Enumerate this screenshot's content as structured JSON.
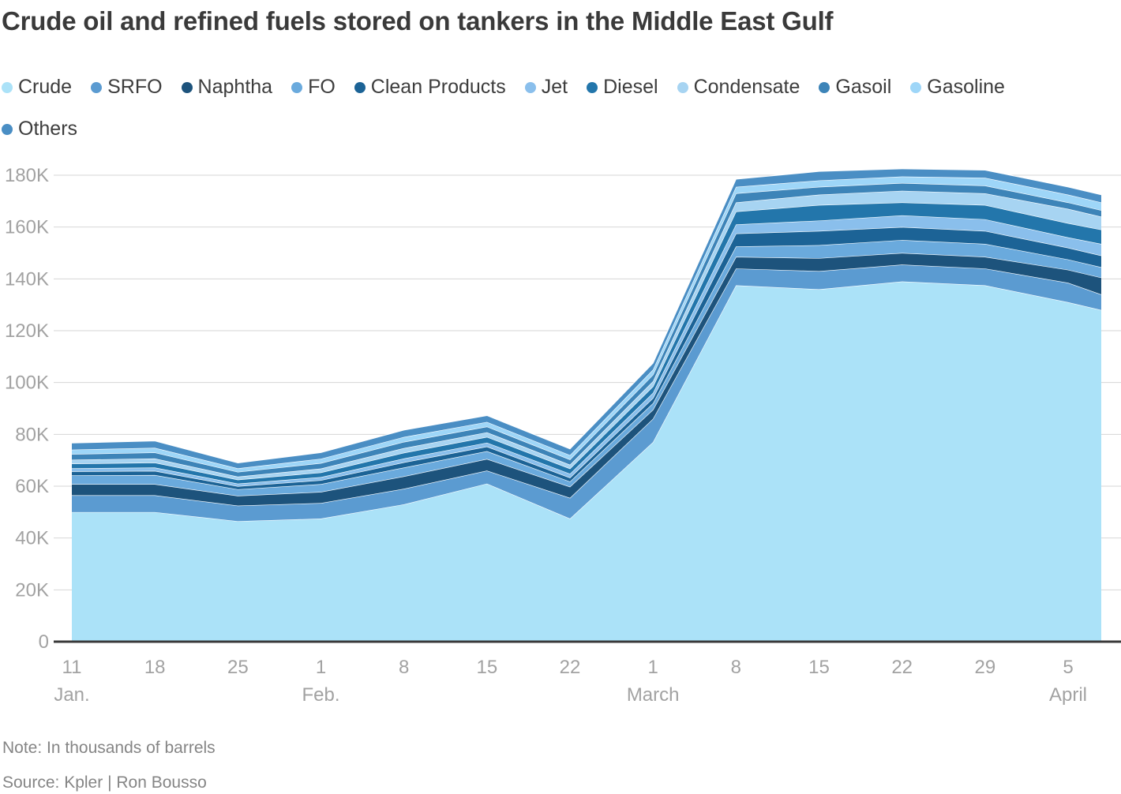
{
  "title": "Crude oil and refined fuels stored on tankers in the Middle East Gulf",
  "note": "Note: In thousands of barrels",
  "source": "Source: Kpler | Ron Bousso",
  "colors": {
    "grid": "#d6d6d6",
    "axis": "#3a3a3a",
    "tick_label": "#a2a2a2",
    "text": "#3d3d3d",
    "muted": "#858585",
    "separator": "#ffffff"
  },
  "chart_data": {
    "type": "area",
    "stacked": true,
    "title": "Crude oil and refined fuels stored on tankers in the Middle East Gulf",
    "unit": "thousands of barrels",
    "ylabel": "",
    "xlabel": "",
    "grid": true,
    "legend_position": "top",
    "ylim": [
      0,
      180
    ],
    "y_ticks": [
      {
        "value": 0,
        "label": "0"
      },
      {
        "value": 20,
        "label": "20K"
      },
      {
        "value": 40,
        "label": "40K"
      },
      {
        "value": 60,
        "label": "60K"
      },
      {
        "value": 80,
        "label": "80K"
      },
      {
        "value": 100,
        "label": "100K"
      },
      {
        "value": 120,
        "label": "120K"
      },
      {
        "value": 140,
        "label": "140K"
      },
      {
        "value": 160,
        "label": "160K"
      },
      {
        "value": 180,
        "label": "180K"
      }
    ],
    "x_ticks": [
      {
        "label": "11",
        "month": "Jan."
      },
      {
        "label": "18"
      },
      {
        "label": "25"
      },
      {
        "label": "1",
        "month": "Feb."
      },
      {
        "label": "8"
      },
      {
        "label": "15"
      },
      {
        "label": "22"
      },
      {
        "label": "1",
        "month": "March"
      },
      {
        "label": "8"
      },
      {
        "label": "15"
      },
      {
        "label": "22"
      },
      {
        "label": "29"
      },
      {
        "label": "5",
        "month": "April"
      }
    ],
    "x_points": [
      "Jan 11",
      "Jan 18",
      "Jan 25",
      "Feb 1",
      "Feb 8",
      "Feb 15",
      "Feb 22",
      "Mar 1",
      "Mar 8",
      "Mar 15",
      "Mar 22",
      "Mar 29",
      "Apr 5",
      "Apr 8"
    ],
    "series": [
      {
        "name": "Crude",
        "color": "#abe2f8",
        "values": [
          50,
          50,
          46.5,
          47.5,
          53,
          61,
          47.5,
          77,
          137.5,
          136,
          139,
          137.5,
          131,
          128
        ]
      },
      {
        "name": "SRFO",
        "color": "#5b9bd1",
        "values": [
          6.5,
          6.5,
          6,
          6,
          6,
          5,
          8,
          9,
          6.5,
          7,
          6.5,
          6.5,
          7.5,
          6
        ]
      },
      {
        "name": "Naphtha",
        "color": "#1d537c",
        "values": [
          4.3,
          4.3,
          3.8,
          4.3,
          4.8,
          4.5,
          4.3,
          3.5,
          4.5,
          5,
          4.5,
          4.5,
          5,
          6.5
        ]
      },
      {
        "name": "FO",
        "color": "#6aaadd",
        "values": [
          3.4,
          3.5,
          2.5,
          3,
          3.4,
          3,
          2,
          2.5,
          4,
          5,
          5,
          5,
          4,
          4
        ]
      },
      {
        "name": "Clean Products",
        "color": "#1c6396",
        "values": [
          1.5,
          1.6,
          1.2,
          1.5,
          2,
          1.8,
          1.5,
          2,
          5,
          5.5,
          5,
          5,
          4.5,
          4.5
        ]
      },
      {
        "name": "Jet",
        "color": "#8abfec",
        "values": [
          1.2,
          1.3,
          1,
          1.2,
          1.5,
          1.5,
          1.5,
          2,
          3.5,
          4,
          4.5,
          4.5,
          4,
          4.5
        ]
      },
      {
        "name": "Diesel",
        "color": "#2376ab",
        "values": [
          1.8,
          1.9,
          1.5,
          1.8,
          2.2,
          2.2,
          2,
          2.5,
          5,
          6,
          5,
          5.5,
          5.5,
          5.5
        ]
      },
      {
        "name": "Condensate",
        "color": "#a7d4f2",
        "values": [
          1.5,
          1.6,
          1.2,
          1.5,
          1.8,
          1.8,
          1.5,
          2,
          3.5,
          4,
          4.5,
          4.5,
          5.5,
          5
        ]
      },
      {
        "name": "Gasoil",
        "color": "#3d84b8",
        "values": [
          2.2,
          2.3,
          1.8,
          2.1,
          2.4,
          2.2,
          2,
          2.5,
          3.5,
          3,
          3,
          3,
          2.5,
          2.5
        ]
      },
      {
        "name": "Gasoline",
        "color": "#9ed6f8",
        "values": [
          1.7,
          1.8,
          1.4,
          1.7,
          1.9,
          1.8,
          1.7,
          2,
          2.5,
          2.5,
          2.5,
          3,
          3,
          3
        ]
      },
      {
        "name": "Others",
        "color": "#4a8ec4",
        "values": [
          2.6,
          2.7,
          2.1,
          2.4,
          2.7,
          2.5,
          2.4,
          2.5,
          3,
          3.5,
          3,
          3,
          3,
          3
        ]
      }
    ]
  }
}
